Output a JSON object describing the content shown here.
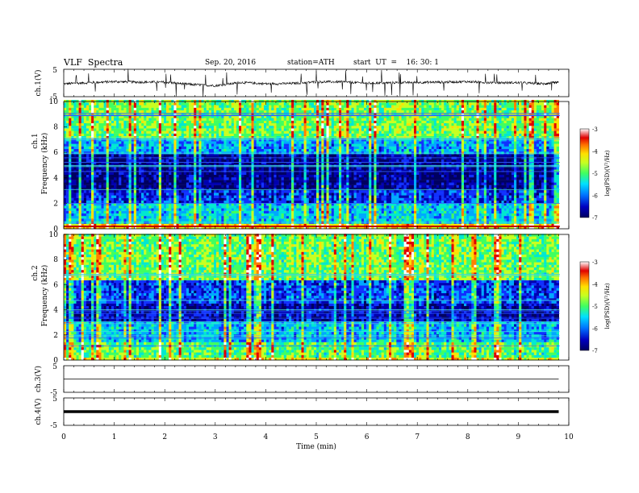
{
  "header": {
    "title": "VLF  Spectra",
    "date": "Sep. 20, 2016",
    "station": "station=ATH",
    "start": "start  UT  =    16: 30: 1"
  },
  "colors": {
    "spectrogram_scale": [
      "#000060",
      "#0000b0",
      "#1030ff",
      "#00a8ff",
      "#00e8d0",
      "#40ff60",
      "#c8ff20",
      "#ffe000",
      "#ff8000",
      "#e00000",
      "#ffffff"
    ]
  },
  "chart_data": [
    {
      "type": "line",
      "panel": "ch1-waveform",
      "ylabel": "ch.1(V)",
      "yticks": [
        "5",
        "-5"
      ],
      "ylim": [
        -5,
        5
      ],
      "xlim": [
        0,
        10
      ],
      "series": [
        {
          "x": [
            0,
            0.5,
            1,
            1.5,
            2,
            2.5,
            3,
            3.5,
            4,
            4.5,
            5,
            5.5,
            6,
            6.5,
            7,
            7.5,
            8,
            8.5,
            9,
            9.5,
            9.8
          ],
          "values": [
            -0.3,
            0.1,
            0.5,
            0.3,
            0.3,
            -0.5,
            -1.0,
            0.2,
            -0.3,
            -0.2,
            0.4,
            0.4,
            -0.1,
            0.1,
            0.2,
            0.3,
            0.5,
            0.1,
            0.1,
            -0.3,
            0.2
          ]
        }
      ]
    },
    {
      "type": "heatmap",
      "panel": "ch1-spectrogram",
      "ylabel_top": "ch.1",
      "ylabel": "Frequency  (kHz)",
      "yticks": [
        "0",
        "2",
        "4",
        "6",
        "8",
        "10"
      ],
      "ylim": [
        0,
        10
      ],
      "xlim": [
        0,
        10
      ],
      "colorbar": {
        "label": "log(PSD)(V²/Hz)",
        "ticks": [
          "-3",
          "-4",
          "-5",
          "-6",
          "-7"
        ],
        "range": [
          -7,
          -3
        ]
      },
      "mean_log_psd_by_band": [
        {
          "khz": [
            0,
            0.5
          ],
          "value": -4.2
        },
        {
          "khz": [
            0.5,
            2
          ],
          "value": -5.6
        },
        {
          "khz": [
            2,
            3
          ],
          "value": -6.3
        },
        {
          "khz": [
            3,
            5.8
          ],
          "value": -6.8
        },
        {
          "khz": [
            5.8,
            7
          ],
          "value": -5.8
        },
        {
          "khz": [
            7,
            10
          ],
          "value": -4.9
        }
      ]
    },
    {
      "type": "heatmap",
      "panel": "ch2-spectrogram",
      "ylabel_top": "ch.2",
      "ylabel": "Frequency  (kHz)",
      "yticks": [
        "0",
        "2",
        "4",
        "6",
        "8",
        "10"
      ],
      "ylim": [
        0,
        10
      ],
      "xlim": [
        0,
        10
      ],
      "colorbar": {
        "label": "log(PSD)(V²/Hz)",
        "ticks": [
          "-3",
          "-4",
          "-5",
          "-6",
          "-7"
        ],
        "range": [
          -7,
          -3
        ]
      },
      "mean_log_psd_by_band": [
        {
          "khz": [
            0,
            0.3
          ],
          "value": -4.4
        },
        {
          "khz": [
            0.3,
            1.5
          ],
          "value": -5.0
        },
        {
          "khz": [
            1.5,
            3
          ],
          "value": -5.7
        },
        {
          "khz": [
            3,
            4.5
          ],
          "value": -6.6
        },
        {
          "khz": [
            4.5,
            6.3
          ],
          "value": -6.2
        },
        {
          "khz": [
            6.3,
            10
          ],
          "value": -4.9
        }
      ]
    },
    {
      "type": "line",
      "panel": "ch3-waveform",
      "ylabel": "ch.3(V)",
      "yticks": [
        "5",
        "-5"
      ],
      "ylim": [
        -5,
        5
      ],
      "xlim": [
        0,
        10
      ],
      "series": [
        {
          "x": [
            0,
            9.8
          ],
          "values": [
            0,
            0
          ]
        }
      ]
    },
    {
      "type": "line",
      "panel": "ch4-waveform",
      "ylabel": "ch.4(V)",
      "yticks": [
        "5",
        "-5"
      ],
      "ylim": [
        -5,
        5
      ],
      "xlim": [
        0,
        10
      ],
      "xlabel": "Time  (min)",
      "xticks": [
        "0",
        "1",
        "2",
        "3",
        "4",
        "5",
        "6",
        "7",
        "8",
        "9",
        "10"
      ],
      "series": [
        {
          "x": [
            0,
            9.8
          ],
          "values": [
            0,
            0
          ]
        }
      ]
    }
  ]
}
